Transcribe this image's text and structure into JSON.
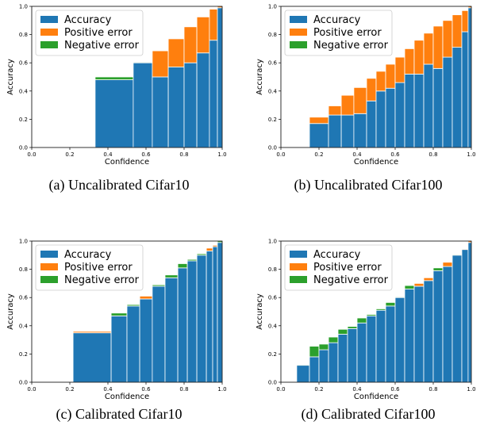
{
  "figure": {
    "legend_labels": [
      "Accuracy",
      "Positive error",
      "Negative error"
    ],
    "colors": {
      "accuracy": "#1f77b4",
      "positive": "#ff7f0e",
      "negative": "#2ca02c"
    },
    "x_label": "Confidence",
    "y_label": "Accuracy",
    "tick_labels": [
      "0.0",
      "0.2",
      "0.4",
      "0.6",
      "0.8",
      "1.0"
    ]
  },
  "chart_data": [
    {
      "type": "bar",
      "caption": "(a) Uncalibrated Cifar10",
      "xlabel": "Confidence",
      "ylabel": "Accuracy",
      "xlim": [
        0,
        1
      ],
      "ylim": [
        0,
        1
      ],
      "legend": "top-left",
      "bins": [
        {
          "x0": 0.333,
          "x1": 0.533,
          "accuracy": 0.48,
          "positive": 0.0,
          "negative": 0.02
        },
        {
          "x0": 0.533,
          "x1": 0.633,
          "accuracy": 0.6,
          "positive": 0.0,
          "negative": 0.005
        },
        {
          "x0": 0.633,
          "x1": 0.717,
          "accuracy": 0.5,
          "positive": 0.185,
          "negative": 0.0
        },
        {
          "x0": 0.717,
          "x1": 0.8,
          "accuracy": 0.57,
          "positive": 0.2,
          "negative": 0.0
        },
        {
          "x0": 0.8,
          "x1": 0.867,
          "accuracy": 0.6,
          "positive": 0.255,
          "negative": 0.0
        },
        {
          "x0": 0.867,
          "x1": 0.933,
          "accuracy": 0.67,
          "positive": 0.255,
          "negative": 0.0
        },
        {
          "x0": 0.933,
          "x1": 0.975,
          "accuracy": 0.76,
          "positive": 0.22,
          "negative": 0.0
        },
        {
          "x0": 0.975,
          "x1": 1.0,
          "accuracy": 0.99,
          "positive": 0.01,
          "negative": 0.0
        }
      ]
    },
    {
      "type": "bar",
      "caption": "(b) Uncalibrated Cifar100",
      "xlabel": "Confidence",
      "ylabel": "Accuracy",
      "xlim": [
        0,
        1
      ],
      "ylim": [
        0,
        1
      ],
      "legend": "top-left",
      "bins": [
        {
          "x0": 0.15,
          "x1": 0.25,
          "accuracy": 0.17,
          "positive": 0.045,
          "negative": 0.0
        },
        {
          "x0": 0.25,
          "x1": 0.317,
          "accuracy": 0.23,
          "positive": 0.065,
          "negative": 0.0
        },
        {
          "x0": 0.317,
          "x1": 0.383,
          "accuracy": 0.23,
          "positive": 0.14,
          "negative": 0.0
        },
        {
          "x0": 0.383,
          "x1": 0.45,
          "accuracy": 0.24,
          "positive": 0.185,
          "negative": 0.0
        },
        {
          "x0": 0.45,
          "x1": 0.5,
          "accuracy": 0.33,
          "positive": 0.16,
          "negative": 0.0
        },
        {
          "x0": 0.5,
          "x1": 0.55,
          "accuracy": 0.4,
          "positive": 0.14,
          "negative": 0.0
        },
        {
          "x0": 0.55,
          "x1": 0.6,
          "accuracy": 0.42,
          "positive": 0.17,
          "negative": 0.0
        },
        {
          "x0": 0.6,
          "x1": 0.65,
          "accuracy": 0.46,
          "positive": 0.18,
          "negative": 0.0
        },
        {
          "x0": 0.65,
          "x1": 0.7,
          "accuracy": 0.52,
          "positive": 0.18,
          "negative": 0.0
        },
        {
          "x0": 0.7,
          "x1": 0.75,
          "accuracy": 0.52,
          "positive": 0.24,
          "negative": 0.0
        },
        {
          "x0": 0.75,
          "x1": 0.8,
          "accuracy": 0.59,
          "positive": 0.22,
          "negative": 0.0
        },
        {
          "x0": 0.8,
          "x1": 0.85,
          "accuracy": 0.56,
          "positive": 0.3,
          "negative": 0.0
        },
        {
          "x0": 0.85,
          "x1": 0.9,
          "accuracy": 0.64,
          "positive": 0.26,
          "negative": 0.0
        },
        {
          "x0": 0.9,
          "x1": 0.95,
          "accuracy": 0.71,
          "positive": 0.23,
          "negative": 0.0
        },
        {
          "x0": 0.95,
          "x1": 0.983,
          "accuracy": 0.82,
          "positive": 0.15,
          "negative": 0.0
        },
        {
          "x0": 0.983,
          "x1": 1.0,
          "accuracy": 0.99,
          "positive": 0.01,
          "negative": 0.0
        }
      ]
    },
    {
      "type": "bar",
      "caption": "(c) Calibrated Cifar10",
      "xlabel": "Confidence",
      "ylabel": "Accuracy",
      "xlim": [
        0,
        1
      ],
      "ylim": [
        0,
        1
      ],
      "legend": "top-left",
      "bins": [
        {
          "x0": 0.217,
          "x1": 0.417,
          "accuracy": 0.35,
          "positive": 0.01,
          "negative": 0.0
        },
        {
          "x0": 0.417,
          "x1": 0.5,
          "accuracy": 0.47,
          "positive": 0.0,
          "negative": 0.02
        },
        {
          "x0": 0.5,
          "x1": 0.567,
          "accuracy": 0.54,
          "positive": 0.0,
          "negative": 0.01
        },
        {
          "x0": 0.567,
          "x1": 0.633,
          "accuracy": 0.59,
          "positive": 0.02,
          "negative": 0.0
        },
        {
          "x0": 0.633,
          "x1": 0.7,
          "accuracy": 0.68,
          "positive": 0.0,
          "negative": 0.01
        },
        {
          "x0": 0.7,
          "x1": 0.767,
          "accuracy": 0.74,
          "positive": 0.0,
          "negative": 0.02
        },
        {
          "x0": 0.767,
          "x1": 0.817,
          "accuracy": 0.81,
          "positive": 0.0,
          "negative": 0.03
        },
        {
          "x0": 0.817,
          "x1": 0.867,
          "accuracy": 0.86,
          "positive": 0.0,
          "negative": 0.01
        },
        {
          "x0": 0.867,
          "x1": 0.917,
          "accuracy": 0.9,
          "positive": 0.0,
          "negative": 0.01
        },
        {
          "x0": 0.917,
          "x1": 0.95,
          "accuracy": 0.93,
          "positive": 0.02,
          "negative": 0.0
        },
        {
          "x0": 0.95,
          "x1": 0.975,
          "accuracy": 0.96,
          "positive": 0.01,
          "negative": 0.0
        },
        {
          "x0": 0.975,
          "x1": 1.0,
          "accuracy": 0.99,
          "positive": 0.0,
          "negative": 0.01
        }
      ]
    },
    {
      "type": "bar",
      "caption": "(d) Calibrated Cifar100",
      "xlabel": "Confidence",
      "ylabel": "Accuracy",
      "xlim": [
        0,
        1
      ],
      "ylim": [
        0,
        1
      ],
      "legend": "top-left",
      "bins": [
        {
          "x0": 0.083,
          "x1": 0.15,
          "accuracy": 0.12,
          "positive": 0.005,
          "negative": 0.005
        },
        {
          "x0": 0.15,
          "x1": 0.2,
          "accuracy": 0.18,
          "positive": 0.0,
          "negative": 0.075
        },
        {
          "x0": 0.2,
          "x1": 0.25,
          "accuracy": 0.23,
          "positive": 0.0,
          "negative": 0.04
        },
        {
          "x0": 0.25,
          "x1": 0.3,
          "accuracy": 0.28,
          "positive": 0.0,
          "negative": 0.04
        },
        {
          "x0": 0.3,
          "x1": 0.35,
          "accuracy": 0.34,
          "positive": 0.0,
          "negative": 0.035
        },
        {
          "x0": 0.35,
          "x1": 0.4,
          "accuracy": 0.38,
          "positive": 0.0,
          "negative": 0.015
        },
        {
          "x0": 0.4,
          "x1": 0.45,
          "accuracy": 0.42,
          "positive": 0.0,
          "negative": 0.035
        },
        {
          "x0": 0.45,
          "x1": 0.5,
          "accuracy": 0.47,
          "positive": 0.0,
          "negative": 0.01
        },
        {
          "x0": 0.5,
          "x1": 0.55,
          "accuracy": 0.51,
          "positive": 0.0,
          "negative": 0.01
        },
        {
          "x0": 0.55,
          "x1": 0.6,
          "accuracy": 0.54,
          "positive": 0.0,
          "negative": 0.025
        },
        {
          "x0": 0.6,
          "x1": 0.65,
          "accuracy": 0.6,
          "positive": 0.0,
          "negative": 0.005
        },
        {
          "x0": 0.65,
          "x1": 0.7,
          "accuracy": 0.66,
          "positive": 0.0,
          "negative": 0.025
        },
        {
          "x0": 0.7,
          "x1": 0.75,
          "accuracy": 0.68,
          "positive": 0.02,
          "negative": 0.0
        },
        {
          "x0": 0.75,
          "x1": 0.8,
          "accuracy": 0.72,
          "positive": 0.02,
          "negative": 0.0
        },
        {
          "x0": 0.8,
          "x1": 0.85,
          "accuracy": 0.79,
          "positive": 0.0,
          "negative": 0.02
        },
        {
          "x0": 0.85,
          "x1": 0.9,
          "accuracy": 0.82,
          "positive": 0.03,
          "negative": 0.0
        },
        {
          "x0": 0.9,
          "x1": 0.95,
          "accuracy": 0.9,
          "positive": 0.0,
          "negative": 0.005
        },
        {
          "x0": 0.95,
          "x1": 0.983,
          "accuracy": 0.94,
          "positive": 0.005,
          "negative": 0.0
        },
        {
          "x0": 0.983,
          "x1": 1.0,
          "accuracy": 0.99,
          "positive": 0.01,
          "negative": 0.0
        }
      ]
    }
  ]
}
